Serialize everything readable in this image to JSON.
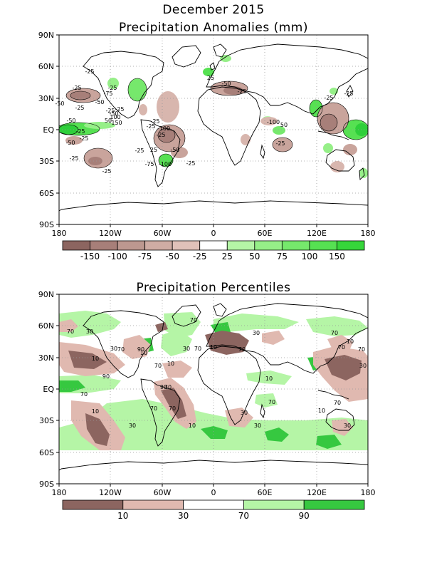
{
  "figure": {
    "title": "December 2015"
  },
  "panel1": {
    "title": "Precipitation Anomalies (mm)",
    "lat_labels": [
      "90N",
      "60N",
      "30N",
      "EQ",
      "30S",
      "60S",
      "90S"
    ],
    "lon_labels": [
      "180",
      "120W",
      "60W",
      "0",
      "60E",
      "120E",
      "180"
    ],
    "colorbar": {
      "colors": [
        "#8c6560",
        "#a77f79",
        "#bd9890",
        "#cfaca4",
        "#e0c1b9",
        "#ffffff",
        "#b5f5a6",
        "#96ef88",
        "#76e86c",
        "#56e152",
        "#36d63a"
      ],
      "labels": [
        "-150",
        "-100",
        "-75",
        "-50",
        "-25",
        "25",
        "50",
        "75",
        "100",
        "150"
      ]
    },
    "contour_labels": [
      "-25",
      "-50",
      "-25",
      "-25",
      "-75",
      "-50",
      "-25",
      "-25",
      "-50",
      "-25",
      "-50",
      "50",
      "100",
      "150",
      "-25",
      "-50",
      "-25",
      "-25",
      "-25",
      "-25",
      "-25",
      "-100",
      "-25",
      "-25",
      "25",
      "-50",
      "-25",
      "-75",
      "-100",
      "-25",
      "-50",
      "25",
      "-25",
      "-25",
      "-100",
      "50",
      "-25"
    ]
  },
  "panel2": {
    "title": "Precipitation Percentiles",
    "lat_labels": [
      "90N",
      "60N",
      "30N",
      "EQ",
      "30S",
      "60S",
      "90S"
    ],
    "lon_labels": [
      "180",
      "120W",
      "60W",
      "0",
      "60E",
      "120E",
      "180"
    ],
    "colorbar": {
      "colors": [
        "#8c6560",
        "#e0b9b0",
        "#ffffff",
        "#b5f5a6",
        "#36c840"
      ],
      "labels": [
        "10",
        "30",
        "70",
        "90"
      ]
    },
    "contour_labels": [
      "70",
      "30",
      "10",
      "30",
      "70",
      "10",
      "90",
      "70",
      "10",
      "30",
      "90",
      "70",
      "10",
      "30",
      "70",
      "90",
      "70",
      "10",
      "30",
      "70",
      "70",
      "10",
      "70",
      "30",
      "10",
      "30",
      "30",
      "70",
      "10",
      "70",
      "30",
      "70",
      "10",
      "70",
      "30",
      "70"
    ]
  },
  "colors": {
    "dry": "#a47b73",
    "wet": "#56e152",
    "wet_dark": "#2ecf3a"
  }
}
